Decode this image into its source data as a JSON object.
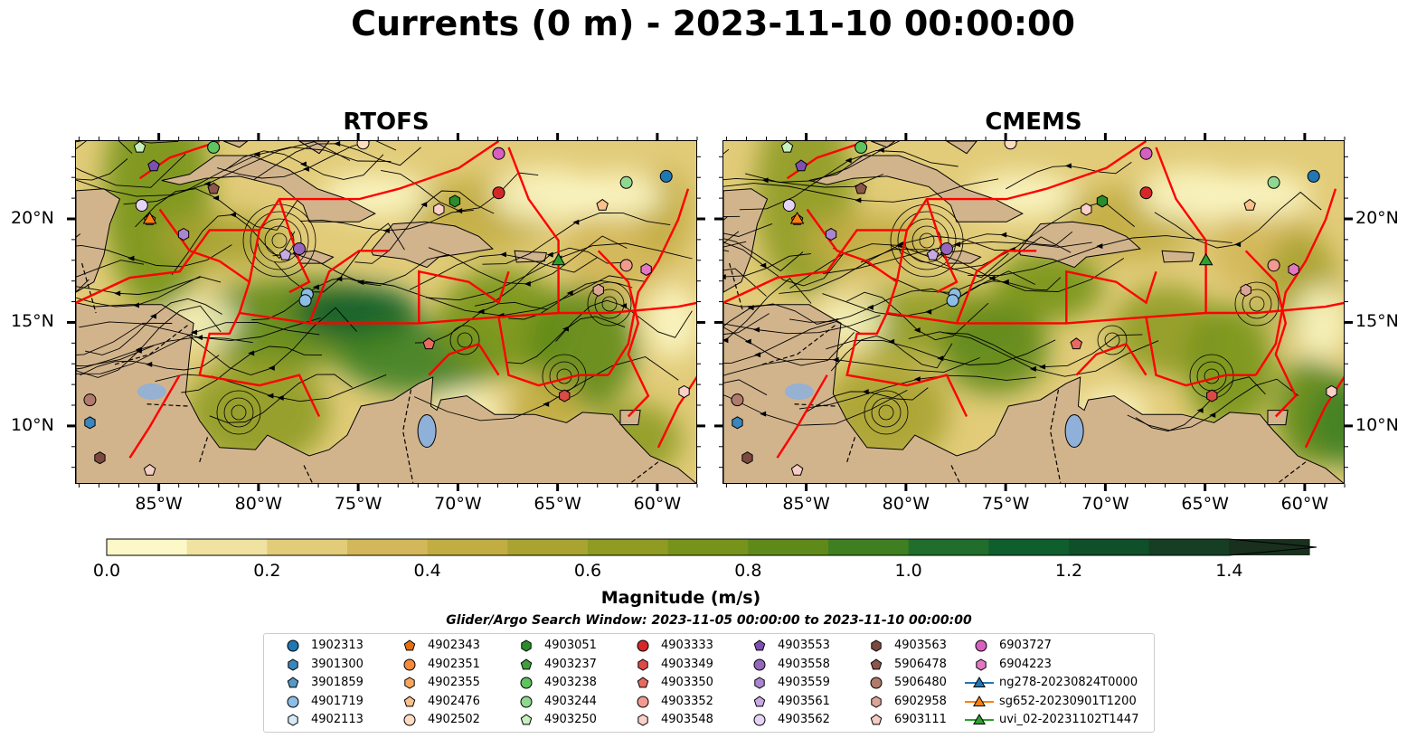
{
  "title": "Currents (0 m) - 2023-11-10 00:00:00",
  "panels": [
    {
      "title": "RTOFS"
    },
    {
      "title": "CMEMS"
    }
  ],
  "axes": {
    "lon_ticks": [
      "85°W",
      "80°W",
      "75°W",
      "70°W",
      "65°W",
      "60°W"
    ],
    "lat_ticks_left": [
      "20°N",
      "15°N",
      "10°N"
    ],
    "lat_ticks_right": [
      "20°N",
      "15°N",
      "10°N"
    ]
  },
  "colorbar": {
    "label": "Magnitude (m/s)",
    "ticks": [
      "0.0",
      "0.2",
      "0.4",
      "0.6",
      "0.8",
      "1.0",
      "1.2",
      "1.4"
    ],
    "range": [
      0.0,
      1.5
    ],
    "extend": "max",
    "colors": [
      "#fdf8c8",
      "#f0e2a0",
      "#e2cc7a",
      "#d3b75a",
      "#c2ad42",
      "#a9a331",
      "#8f9b22",
      "#77931b",
      "#5f8a1a",
      "#3f7f22",
      "#216e2c",
      "#0f5f2e",
      "#0f4f2a",
      "#163e24",
      "#18301d"
    ]
  },
  "search_window": "Glider/Argo Search Window: 2023-11-05 00:00:00 to 2023-11-10 00:00:00",
  "colors": {
    "land": "#d2b48c",
    "eez_lines": "#ff0000",
    "streamlines": "#000000",
    "lakes": "#8fb0d8"
  },
  "legend": {
    "items": [
      {
        "label": "1902313",
        "marker": "circle",
        "color": "#1f77b4"
      },
      {
        "label": "3901300",
        "marker": "hexagon",
        "color": "#3a86bd"
      },
      {
        "label": "3901859",
        "marker": "pentagon",
        "color": "#5598c9"
      },
      {
        "label": "4901719",
        "marker": "circle",
        "color": "#8cbde5"
      },
      {
        "label": "4902113",
        "marker": "hexagon",
        "color": "#d6e9f7"
      },
      {
        "label": "4902343",
        "marker": "pentagon",
        "color": "#e6700e"
      },
      {
        "label": "4902351",
        "marker": "circle",
        "color": "#f58b3a"
      },
      {
        "label": "4902355",
        "marker": "hexagon",
        "color": "#f9a55c"
      },
      {
        "label": "4902476",
        "marker": "pentagon",
        "color": "#fcc08a"
      },
      {
        "label": "4902502",
        "marker": "circle",
        "color": "#fddcbf"
      },
      {
        "label": "4903051",
        "marker": "hexagon",
        "color": "#2a8c2a"
      },
      {
        "label": "4903237",
        "marker": "pentagon",
        "color": "#3f9f3f"
      },
      {
        "label": "4903238",
        "marker": "circle",
        "color": "#5fc35f"
      },
      {
        "label": "4903244",
        "marker": "circle",
        "color": "#8fd88f"
      },
      {
        "label": "4903250",
        "marker": "pentagon",
        "color": "#c8f0c0"
      },
      {
        "label": "4903333",
        "marker": "circle",
        "color": "#d62728"
      },
      {
        "label": "4903349",
        "marker": "hexagon",
        "color": "#dc4a45"
      },
      {
        "label": "4903350",
        "marker": "pentagon",
        "color": "#e86a5e"
      },
      {
        "label": "4903352",
        "marker": "circle",
        "color": "#f29a90"
      },
      {
        "label": "4903548",
        "marker": "hexagon",
        "color": "#fbd0c8"
      },
      {
        "label": "4903553",
        "marker": "pentagon",
        "color": "#7e4fb0"
      },
      {
        "label": "4903558",
        "marker": "circle",
        "color": "#9467bd"
      },
      {
        "label": "4903559",
        "marker": "hexagon",
        "color": "#aa85d0"
      },
      {
        "label": "4903561",
        "marker": "pentagon",
        "color": "#c6a9e6"
      },
      {
        "label": "4903562",
        "marker": "circle",
        "color": "#e6d4f7"
      },
      {
        "label": "4903563",
        "marker": "hexagon",
        "color": "#7a4a3e"
      },
      {
        "label": "5906478",
        "marker": "pentagon",
        "color": "#8c564b"
      },
      {
        "label": "5906480",
        "marker": "circle",
        "color": "#b07a6c"
      },
      {
        "label": "6902958",
        "marker": "hexagon",
        "color": "#dba595"
      },
      {
        "label": "6903111",
        "marker": "pentagon",
        "color": "#f5cdc4"
      },
      {
        "label": "6903727",
        "marker": "circle",
        "color": "#d65fc0"
      },
      {
        "label": "6904223",
        "marker": "hexagon",
        "color": "#e377c2"
      },
      {
        "label": "ng278-20230824T0000",
        "marker": "triangle-line",
        "color": "#1f77b4"
      },
      {
        "label": "sg652-20230901T1200",
        "marker": "triangle-line",
        "color": "#ff7f0e"
      },
      {
        "label": "uvi_02-20231102T1447",
        "marker": "triangle-line",
        "color": "#2ca02c"
      }
    ]
  }
}
